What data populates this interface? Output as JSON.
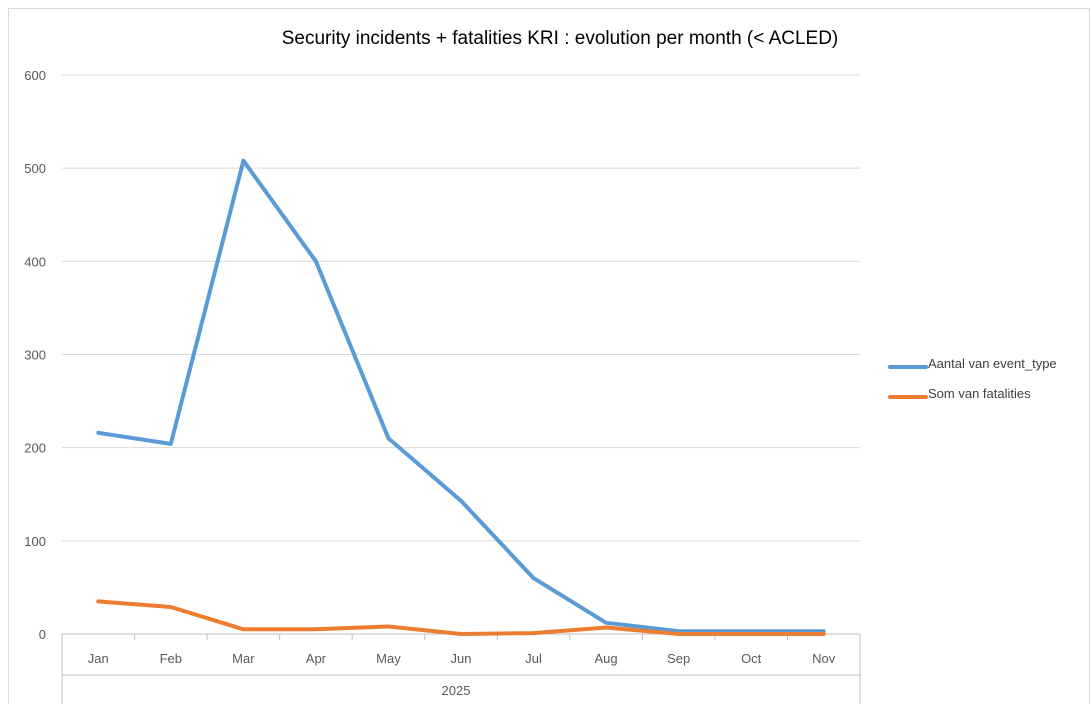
{
  "chart_data": {
    "type": "line",
    "title": "Security incidents + fatalities KRI : evolution per month (< ACLED)",
    "xlabel": "",
    "ylabel": "",
    "group_label": "2025",
    "categories": [
      "Jan",
      "Feb",
      "Mar",
      "Apr",
      "May",
      "Jun",
      "Jul",
      "Aug",
      "Sep",
      "Oct",
      "Nov"
    ],
    "ylim": [
      0,
      600
    ],
    "yticks": [
      0,
      100,
      200,
      300,
      400,
      500,
      600
    ],
    "grid": true,
    "legend_position": "right",
    "series": [
      {
        "name": "Aantal van event_type",
        "color": "#5b9bd5",
        "values": [
          216,
          204,
          508,
          400,
          210,
          143,
          60,
          12,
          3,
          3,
          3
        ]
      },
      {
        "name": "Som van fatalities",
        "color": "#ed7d31",
        "values": [
          35,
          29,
          5,
          5,
          8,
          0,
          1,
          7,
          0,
          0,
          0
        ]
      }
    ]
  }
}
